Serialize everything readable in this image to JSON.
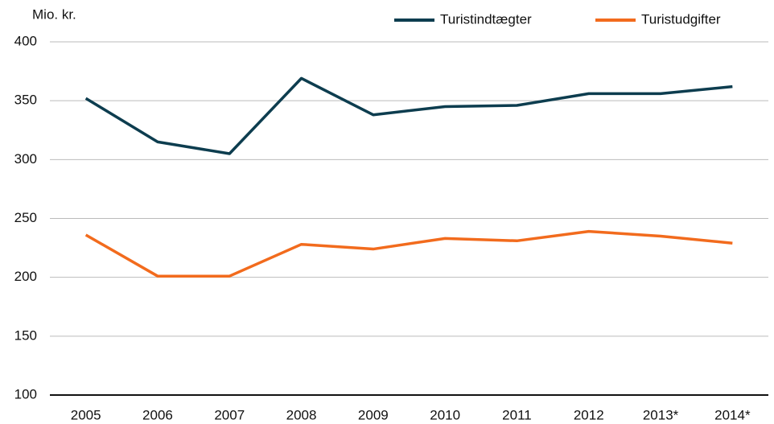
{
  "chart_data": {
    "type": "line",
    "y_label": "Mio. kr.",
    "categories": [
      "2005",
      "2006",
      "2007",
      "2008",
      "2009",
      "2010",
      "2011",
      "2012",
      "2013*",
      "2014*"
    ],
    "series": [
      {
        "name": "Turistindtægter",
        "color": "#0d3d4f",
        "values": [
          352,
          315,
          305,
          369,
          338,
          345,
          346,
          356,
          356,
          362
        ]
      },
      {
        "name": "Turistudgifter",
        "color": "#f26b1d",
        "values": [
          236,
          201,
          201,
          228,
          224,
          233,
          231,
          239,
          235,
          229
        ]
      }
    ],
    "ylim": [
      100,
      400
    ],
    "yticks": [
      100,
      150,
      200,
      250,
      300,
      350,
      400
    ],
    "grid": true,
    "legend": "top"
  }
}
